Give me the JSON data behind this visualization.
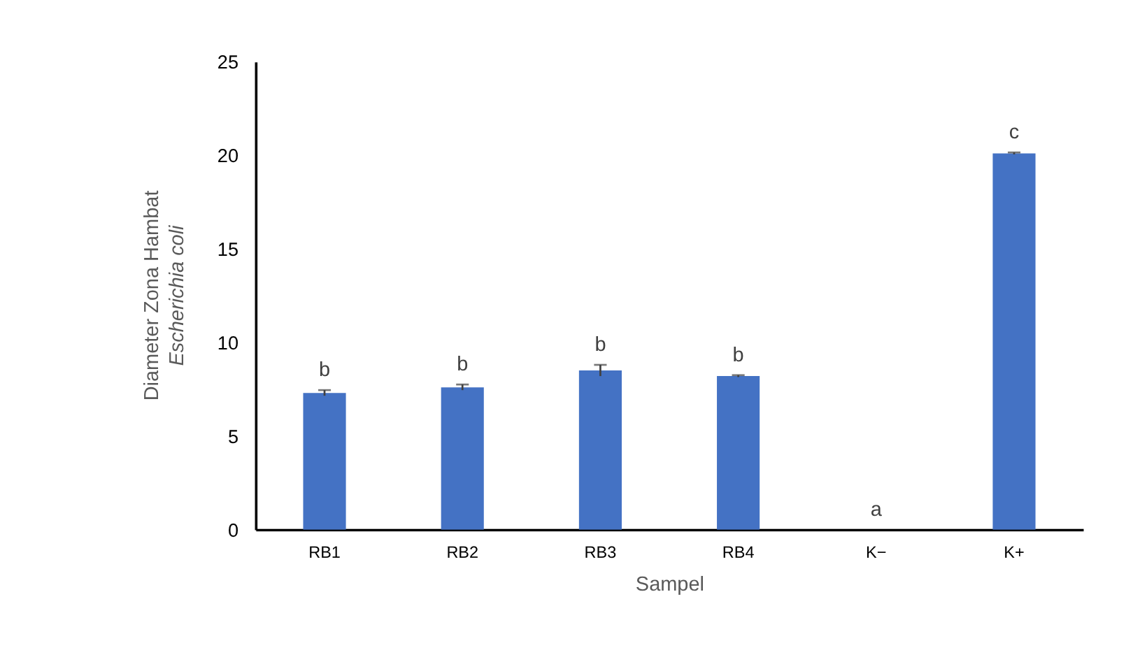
{
  "chart_data": {
    "type": "bar",
    "categories": [
      "RB1",
      "RB2",
      "RB3",
      "RB4",
      "K−",
      "K+"
    ],
    "values": [
      7.3,
      7.6,
      8.5,
      8.2,
      0,
      20.1
    ],
    "errors": [
      0.15,
      0.15,
      0.3,
      0.05,
      null,
      0.05
    ],
    "color": "#4472c4",
    "xlabel": "Sampel",
    "ylabel": "Diameter Zona Hambat\nEscherichia coli",
    "ylim": [
      0,
      25
    ],
    "yticks": [
      0,
      5,
      10,
      15,
      20,
      25
    ],
    "grid": false,
    "annotations": [
      "b",
      "b",
      "b",
      "b",
      "a",
      "c"
    ]
  }
}
